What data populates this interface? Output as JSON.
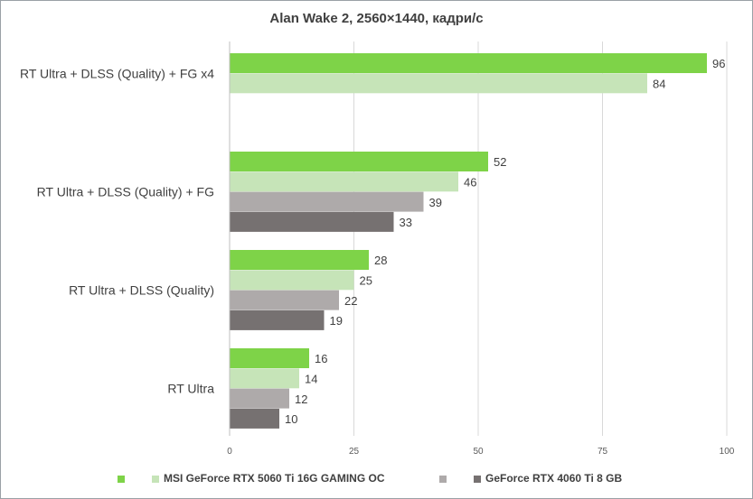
{
  "chart_data": {
    "type": "bar",
    "orientation": "horizontal",
    "title": "Alan Wake 2, 2560×1440, кадри/с",
    "categories": [
      "RT Ultra + DLSS (Quality) + FG x4",
      "RT Ultra + DLSS (Quality) + FG",
      "RT Ultra + DLSS (Quality)",
      "RT Ultra"
    ],
    "series": [
      {
        "name": "",
        "color": "#7ed348",
        "values": [
          96,
          52,
          28,
          16
        ]
      },
      {
        "name": "MSI GeForce RTX 5060 Ti 16G GAMING OC",
        "color": "#c6e4b8",
        "values": [
          84,
          46,
          25,
          14
        ]
      },
      {
        "name": "",
        "color": "#aeaaaa",
        "values": [
          null,
          39,
          22,
          12
        ]
      },
      {
        "name": "GeForce RTX 4060 Ti 8 GB",
        "color": "#767171",
        "values": [
          null,
          33,
          19,
          10
        ]
      }
    ],
    "xlim": [
      0,
      100
    ],
    "xticks": [
      "0",
      "25",
      "50",
      "75",
      "100"
    ],
    "grid": "vertical",
    "legend": "bottom",
    "data_labels": true
  }
}
